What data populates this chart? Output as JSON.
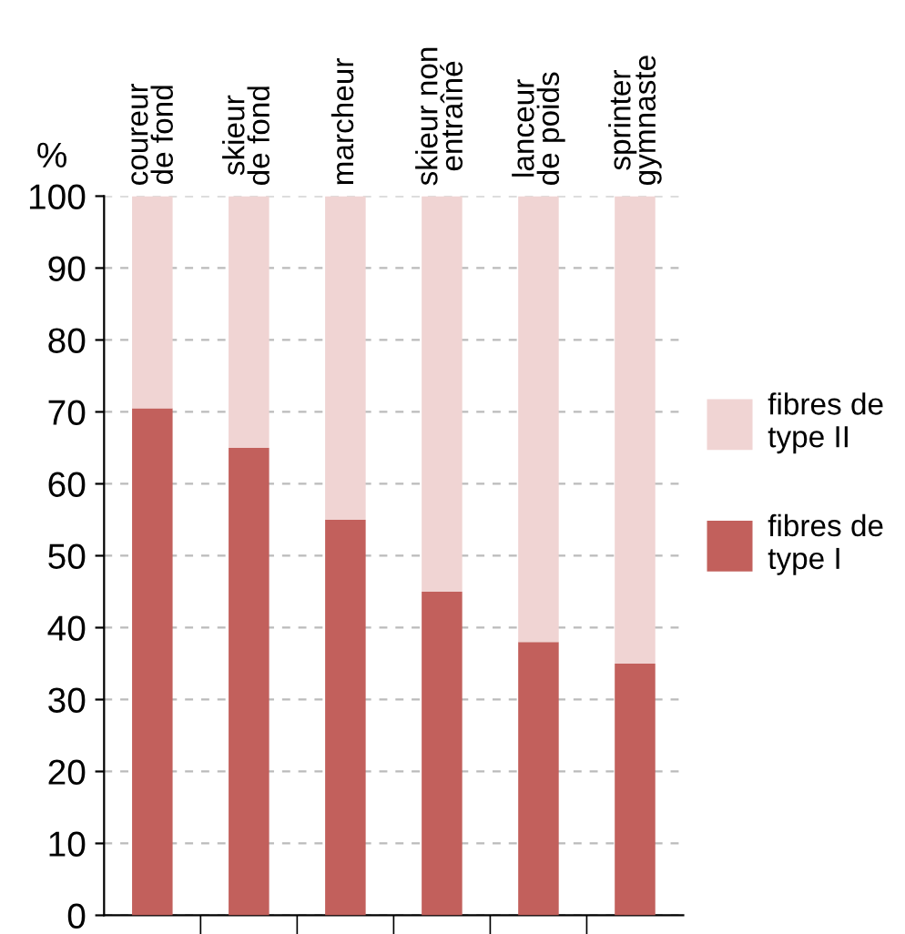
{
  "chart_data": {
    "type": "bar",
    "stacked": true,
    "ylabel": "%",
    "categories": [
      "coureur\nde fond",
      "skieur\nde fond",
      "marcheur",
      "skieur non\nentraîné",
      "lanceur\nde poids",
      "sprinter\ngymnaste"
    ],
    "series": [
      {
        "name": "fibres de\ntype I",
        "color": "#c2605c",
        "values": [
          70.5,
          65,
          55,
          45,
          38,
          35
        ]
      },
      {
        "name": "fibres de\ntype II",
        "color": "#f0d4d3",
        "values": [
          29.5,
          35,
          45,
          55,
          62,
          65
        ]
      }
    ],
    "ylim": [
      0,
      100
    ],
    "yticks": [
      0,
      10,
      20,
      30,
      40,
      50,
      60,
      70,
      80,
      90,
      100
    ],
    "grid": "y",
    "legend": "right"
  }
}
